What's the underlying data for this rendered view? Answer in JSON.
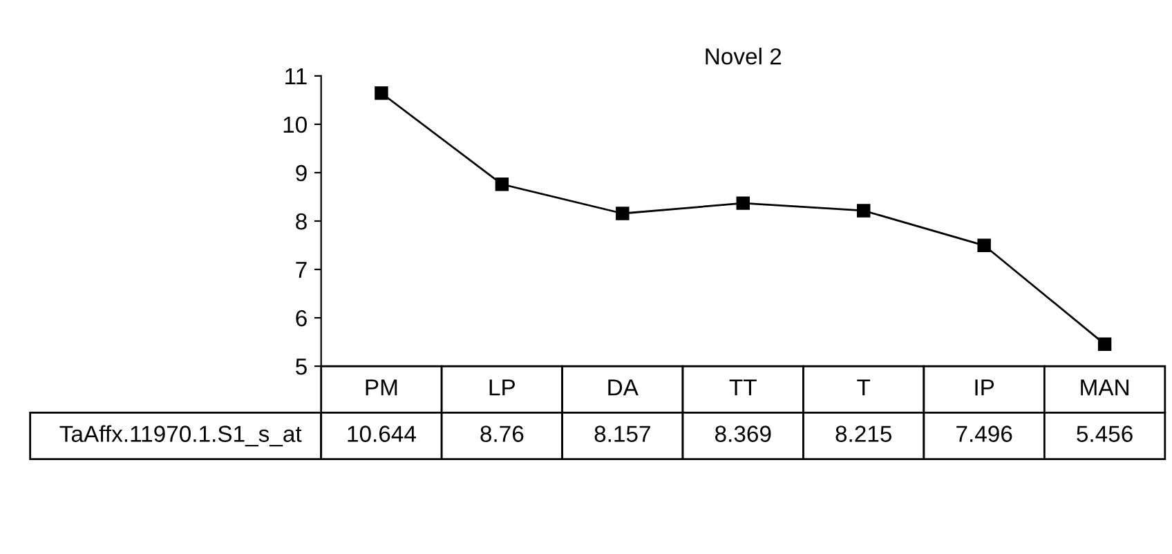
{
  "chart_data": {
    "type": "line",
    "title": "Novel 2",
    "categories": [
      "PM",
      "LP",
      "DA",
      "TT",
      "T",
      "IP",
      "MAN"
    ],
    "series": [
      {
        "name": "TaAffx.11970.1.S1_s_at",
        "color": "#000000",
        "values": [
          10.644,
          8.76,
          8.157,
          8.369,
          8.215,
          7.496,
          5.456
        ]
      }
    ],
    "ylim": [
      5,
      11
    ],
    "yticks": [
      5,
      6,
      7,
      8,
      9,
      10,
      11
    ],
    "grid": false,
    "legend": false,
    "marker": "square",
    "line_style": "solid",
    "data_labels": true,
    "tick_labels": "y"
  }
}
